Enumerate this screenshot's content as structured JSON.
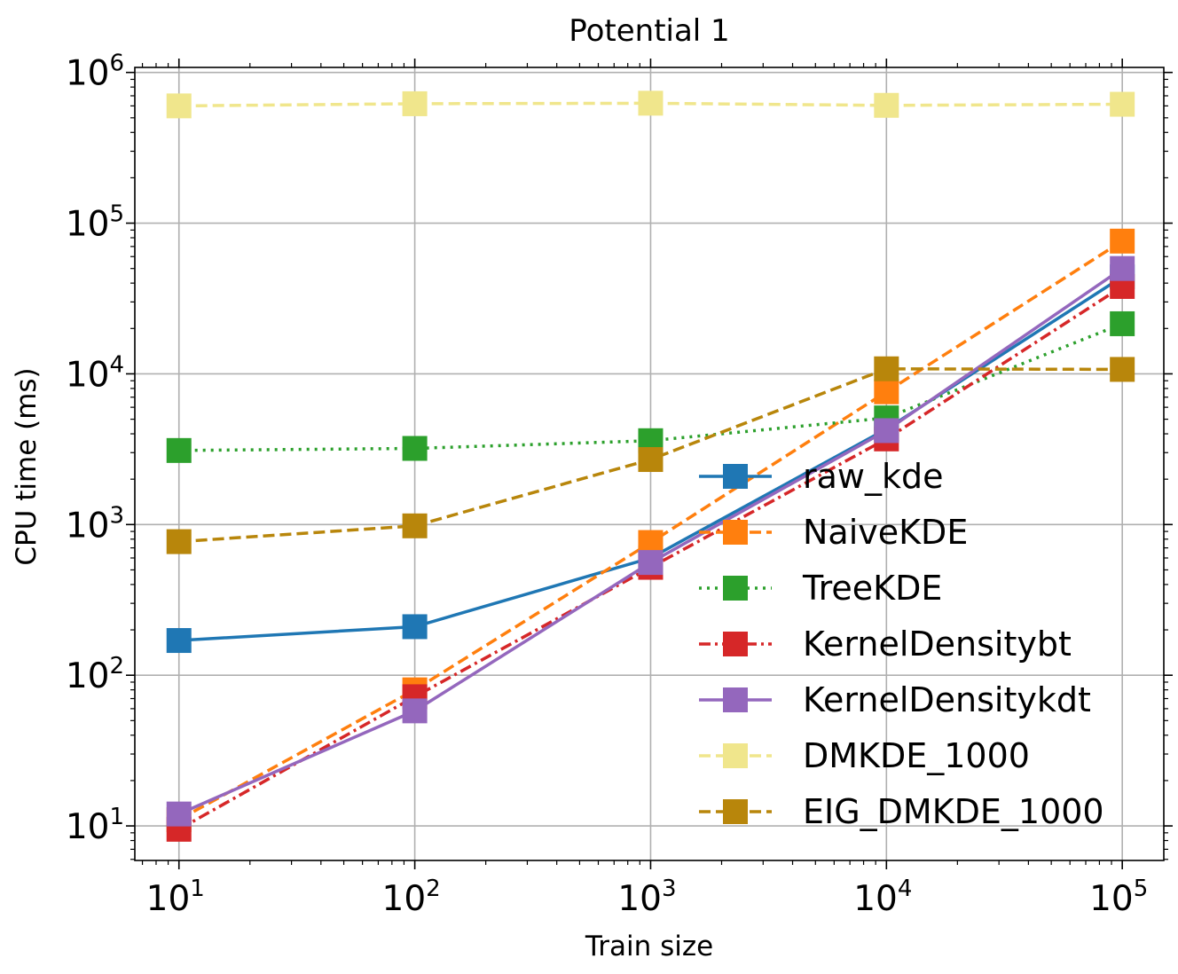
{
  "chart_data": {
    "type": "line",
    "title": "Potential 1",
    "xlabel": "Train size",
    "ylabel": "CPU time (ms)",
    "xscale": "log",
    "yscale": "log",
    "xlim": [
      6.5,
      150000
    ],
    "ylim": [
      5.9,
      1080000
    ],
    "x": [
      10,
      100,
      1000,
      10000,
      100000
    ],
    "x_tick_labels": [
      {
        "base": "10",
        "exp": "1"
      },
      {
        "base": "10",
        "exp": "2"
      },
      {
        "base": "10",
        "exp": "3"
      },
      {
        "base": "10",
        "exp": "4"
      },
      {
        "base": "10",
        "exp": "5"
      }
    ],
    "y_tick_labels": [
      {
        "base": "10",
        "exp": "1"
      },
      {
        "base": "10",
        "exp": "2"
      },
      {
        "base": "10",
        "exp": "3"
      },
      {
        "base": "10",
        "exp": "4"
      },
      {
        "base": "10",
        "exp": "5"
      },
      {
        "base": "10",
        "exp": "6"
      }
    ],
    "grid": true,
    "legend_position": "lower-right",
    "series": [
      {
        "name": "raw_kde",
        "color": "#1f77b4",
        "linestyle": "solid",
        "values": [
          170,
          210,
          600,
          4300,
          44000
        ]
      },
      {
        "name": "NaiveKDE",
        "color": "#ff7f0e",
        "linestyle": "dashed",
        "values": [
          11,
          80,
          760,
          7600,
          76000
        ]
      },
      {
        "name": "TreeKDE",
        "color": "#2ca02c",
        "linestyle": "dotted",
        "values": [
          3100,
          3200,
          3600,
          5100,
          21500
        ]
      },
      {
        "name": "KernelDensitybt",
        "color": "#d62728",
        "linestyle": "dashdot",
        "values": [
          9.5,
          72,
          520,
          3700,
          38000
        ]
      },
      {
        "name": "KernelDensitykdt",
        "color": "#9467bd",
        "linestyle": "solid",
        "values": [
          12,
          58,
          560,
          4200,
          50000
        ]
      },
      {
        "name": "DMKDE_1000",
        "color": "#f0e68c",
        "linestyle": "dashed",
        "values": [
          600000,
          620000,
          625000,
          605000,
          615000
        ]
      },
      {
        "name": "EIG_DMKDE_1000",
        "color": "#b8860b",
        "linestyle": "dashed",
        "values": [
          770,
          980,
          2700,
          10800,
          10700
        ]
      }
    ]
  }
}
